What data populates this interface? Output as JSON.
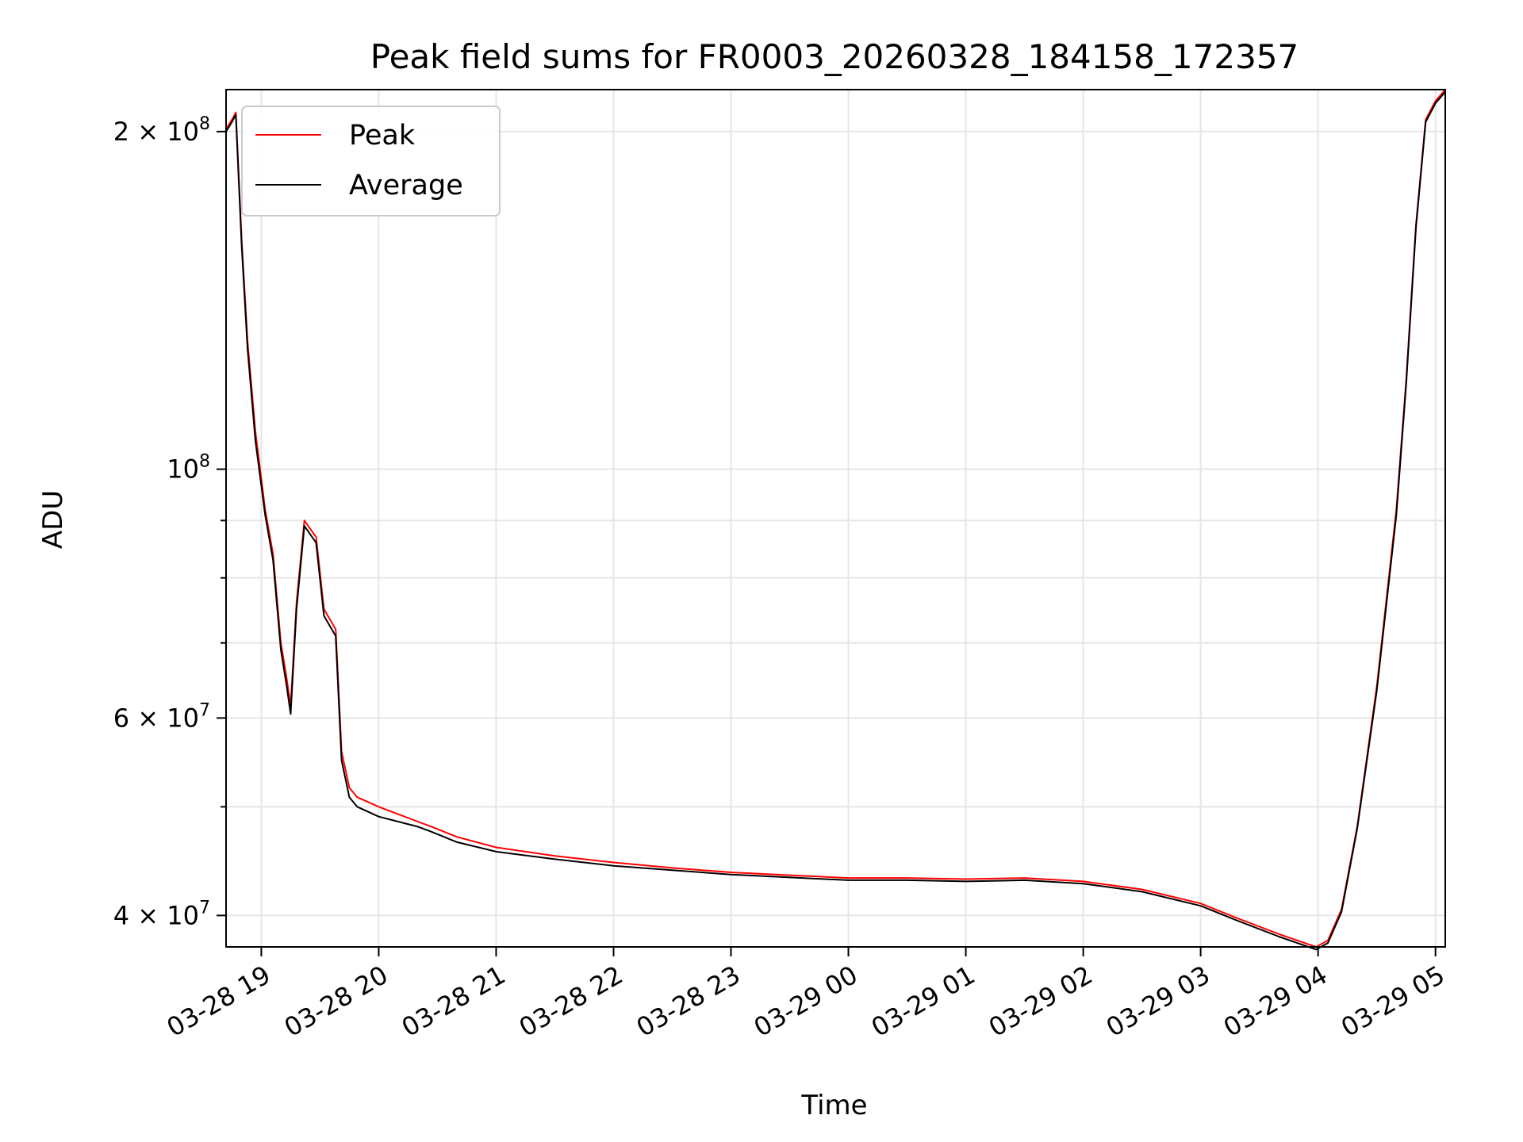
{
  "chart_data": {
    "type": "line",
    "title": "Peak field sums for FR0003_20260328_184158_172357",
    "xlabel": "Time",
    "ylabel": "ADU",
    "yscale": "log",
    "ylim": [
      37500000,
      218000000
    ],
    "xlim": [
      "2026-03-28 18:42",
      "2026-03-29 05:05"
    ],
    "grid": true,
    "legend_position": "top-left",
    "x_ticks": [
      "03-28 19",
      "03-28 20",
      "03-28 21",
      "03-28 22",
      "03-28 23",
      "03-29 00",
      "03-29 01",
      "03-29 02",
      "03-29 03",
      "03-29 04",
      "03-29 05"
    ],
    "y_ticks": [
      {
        "value": 40000000,
        "base": "4 × 10",
        "exp": "7"
      },
      {
        "value": 60000000,
        "base": "6 × 10",
        "exp": "7"
      },
      {
        "value": 100000000,
        "base": "10",
        "exp": "8"
      },
      {
        "value": 200000000,
        "base": "2 × 10",
        "exp": "8"
      }
    ],
    "series": [
      {
        "name": "Peak",
        "color": "#ff0000",
        "x": [
          "2026-03-28 18:42",
          "2026-03-28 18:45",
          "2026-03-28 18:47",
          "2026-03-28 18:50",
          "2026-03-28 18:53",
          "2026-03-28 18:57",
          "2026-03-28 19:02",
          "2026-03-28 19:06",
          "2026-03-28 19:10",
          "2026-03-28 19:13",
          "2026-03-28 19:15",
          "2026-03-28 19:18",
          "2026-03-28 19:22",
          "2026-03-28 19:28",
          "2026-03-28 19:32",
          "2026-03-28 19:38",
          "2026-03-28 19:41",
          "2026-03-28 19:45",
          "2026-03-28 19:49",
          "2026-03-28 20:00",
          "2026-03-28 20:20",
          "2026-03-28 20:27",
          "2026-03-28 20:40",
          "2026-03-28 21:00",
          "2026-03-28 21:30",
          "2026-03-28 22:00",
          "2026-03-28 22:30",
          "2026-03-28 23:00",
          "2026-03-29 00:00",
          "2026-03-29 00:30",
          "2026-03-29 01:00",
          "2026-03-29 01:30",
          "2026-03-29 02:00",
          "2026-03-29 02:30",
          "2026-03-29 03:00",
          "2026-03-29 03:20",
          "2026-03-29 03:40",
          "2026-03-29 03:59",
          "2026-03-29 04:05",
          "2026-03-29 04:12",
          "2026-03-29 04:20",
          "2026-03-29 04:30",
          "2026-03-29 04:40",
          "2026-03-29 04:45",
          "2026-03-29 04:50",
          "2026-03-29 04:55",
          "2026-03-29 05:00",
          "2026-03-29 05:05"
        ],
        "y": [
          201000000,
          205000000,
          208000000,
          160000000,
          130000000,
          108000000,
          92000000,
          84000000,
          70000000,
          65000000,
          61500000,
          76000000,
          90000000,
          87000000,
          75000000,
          72000000,
          56000000,
          52000000,
          51000000,
          50000000,
          48500000,
          48000000,
          47000000,
          46000000,
          45200000,
          44600000,
          44100000,
          43700000,
          43200000,
          43200000,
          43100000,
          43200000,
          42900000,
          42200000,
          41000000,
          39700000,
          38500000,
          37500000,
          38000000,
          40500000,
          48000000,
          64000000,
          92000000,
          120000000,
          165000000,
          205000000,
          213000000,
          218000000
        ]
      },
      {
        "name": "Average",
        "color": "#000000",
        "x": [
          "2026-03-28 18:42",
          "2026-03-28 18:45",
          "2026-03-28 18:47",
          "2026-03-28 18:50",
          "2026-03-28 18:53",
          "2026-03-28 18:57",
          "2026-03-28 19:02",
          "2026-03-28 19:06",
          "2026-03-28 19:10",
          "2026-03-28 19:13",
          "2026-03-28 19:15",
          "2026-03-28 19:18",
          "2026-03-28 19:22",
          "2026-03-28 19:28",
          "2026-03-28 19:32",
          "2026-03-28 19:38",
          "2026-03-28 19:41",
          "2026-03-28 19:45",
          "2026-03-28 19:49",
          "2026-03-28 20:00",
          "2026-03-28 20:20",
          "2026-03-28 20:27",
          "2026-03-28 20:40",
          "2026-03-28 21:00",
          "2026-03-28 21:30",
          "2026-03-28 22:00",
          "2026-03-28 22:30",
          "2026-03-28 23:00",
          "2026-03-29 00:00",
          "2026-03-29 00:30",
          "2026-03-29 01:00",
          "2026-03-29 01:30",
          "2026-03-29 02:00",
          "2026-03-29 02:30",
          "2026-03-29 03:00",
          "2026-03-29 03:20",
          "2026-03-29 03:40",
          "2026-03-29 03:59",
          "2026-03-29 04:05",
          "2026-03-29 04:12",
          "2026-03-29 04:20",
          "2026-03-29 04:30",
          "2026-03-29 04:40",
          "2026-03-29 04:45",
          "2026-03-29 04:50",
          "2026-03-29 04:55",
          "2026-03-29 05:00",
          "2026-03-29 05:05"
        ],
        "y": [
          200000000,
          204000000,
          207000000,
          158000000,
          128000000,
          106000000,
          91000000,
          83000000,
          69000000,
          64000000,
          60500000,
          75000000,
          89000000,
          86000000,
          74000000,
          71000000,
          55000000,
          51000000,
          50000000,
          49000000,
          48000000,
          47500000,
          46500000,
          45600000,
          44900000,
          44300000,
          43900000,
          43500000,
          43000000,
          43000000,
          42900000,
          43000000,
          42700000,
          42000000,
          40800000,
          39500000,
          38300000,
          37300000,
          37800000,
          40300000,
          47800000,
          63500000,
          91000000,
          119000000,
          164000000,
          204000000,
          212000000,
          217000000
        ]
      }
    ]
  }
}
